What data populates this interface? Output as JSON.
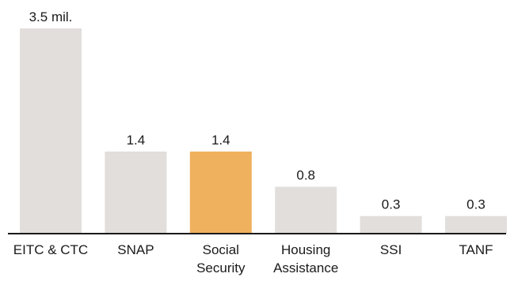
{
  "chart_data": {
    "type": "bar",
    "categories": [
      [
        "EITC & CTC"
      ],
      [
        "SNAP"
      ],
      [
        "Social",
        "Security"
      ],
      [
        "Housing",
        "Assistance"
      ],
      [
        "SSI"
      ],
      [
        "TANF"
      ]
    ],
    "values": [
      3.5,
      1.4,
      1.4,
      0.8,
      0.3,
      0.3
    ],
    "value_labels": [
      "3.5 mil.",
      "1.4",
      "1.4",
      "0.8",
      "0.3",
      "0.3"
    ],
    "highlight_index": 2,
    "ylim": [
      0,
      3.5
    ],
    "grid": false,
    "title": "",
    "xlabel": "",
    "ylabel": "",
    "colors": {
      "bar": "#e2dedb",
      "highlight": "#efb15e",
      "axis": "#1a1a1a",
      "text": "#1a1a1a"
    }
  }
}
